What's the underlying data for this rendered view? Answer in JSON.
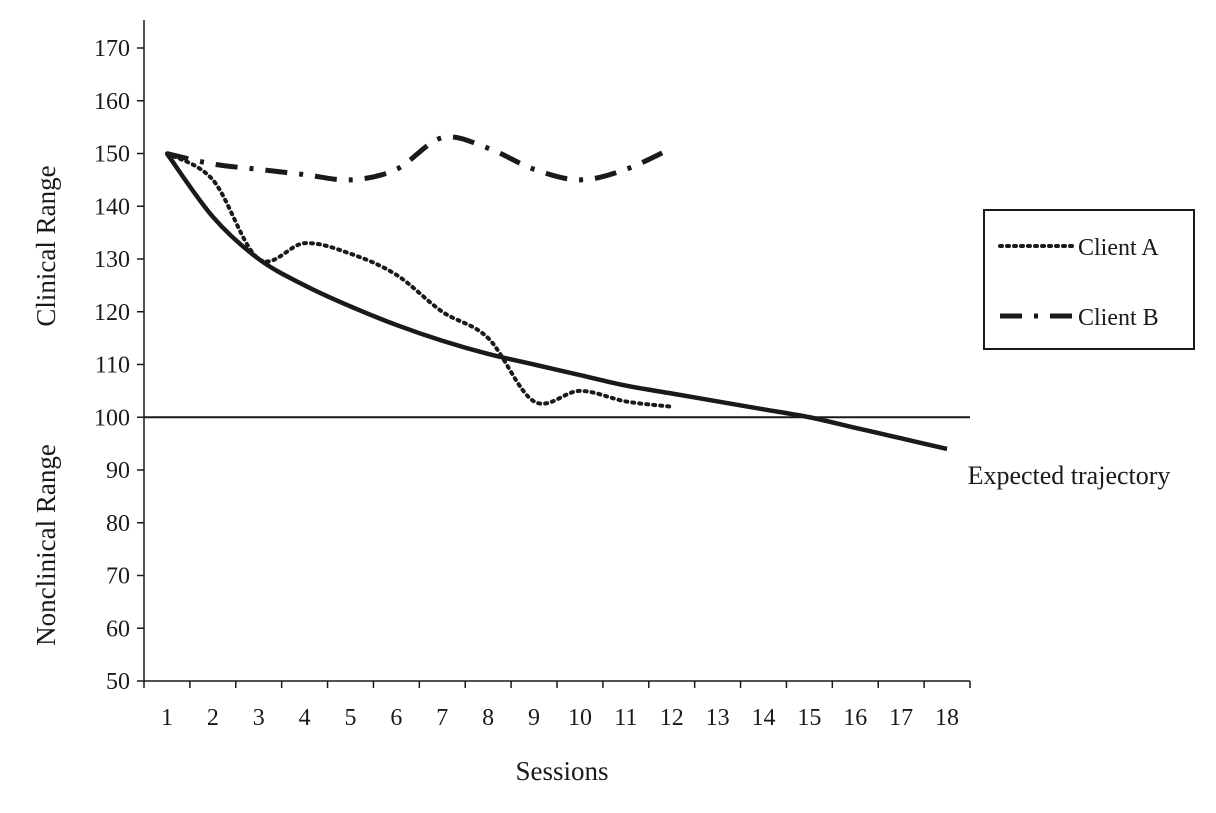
{
  "chart_data": {
    "type": "line",
    "xlabel": "Sessions",
    "ylabel_upper": "Clinical Range",
    "ylabel_lower": "Nonclinical Range",
    "x": [
      1,
      2,
      3,
      4,
      5,
      6,
      7,
      8,
      9,
      10,
      11,
      12,
      13,
      14,
      15,
      16,
      17,
      18
    ],
    "xlim": [
      1,
      18
    ],
    "ylim": [
      50,
      170
    ],
    "yticks": [
      50,
      60,
      70,
      80,
      90,
      100,
      110,
      120,
      130,
      140,
      150,
      160,
      170
    ],
    "threshold": 100,
    "grid": false,
    "legend_position": "right",
    "series": [
      {
        "name": "Client A",
        "style": "dotted",
        "x": [
          1,
          2,
          3,
          4,
          5,
          6,
          7,
          8,
          9,
          10,
          11,
          12
        ],
        "values": [
          150,
          145,
          130,
          133,
          131,
          127,
          120,
          115,
          103,
          105,
          103,
          102
        ]
      },
      {
        "name": "Client B",
        "style": "dash-dot",
        "x": [
          1,
          2,
          3,
          4,
          5,
          6,
          7,
          8,
          9,
          10,
          11,
          12
        ],
        "values": [
          150,
          148,
          147,
          146,
          145,
          147,
          153,
          151,
          147,
          145,
          147,
          151
        ]
      },
      {
        "name": "Expected trajectory",
        "style": "solid",
        "x": [
          1,
          2,
          3,
          4,
          5,
          6,
          7,
          8,
          9,
          10,
          11,
          12,
          13,
          14,
          15,
          16,
          17,
          18
        ],
        "values": [
          150,
          138,
          130,
          125,
          121,
          117.5,
          114.5,
          112,
          110,
          108,
          106,
          104.5,
          103,
          101.5,
          100,
          98,
          96,
          94
        ]
      }
    ],
    "annotations": [
      "Expected trajectory"
    ],
    "colors": {
      "line": "#1a1a1a",
      "background": "#ffffff"
    }
  }
}
